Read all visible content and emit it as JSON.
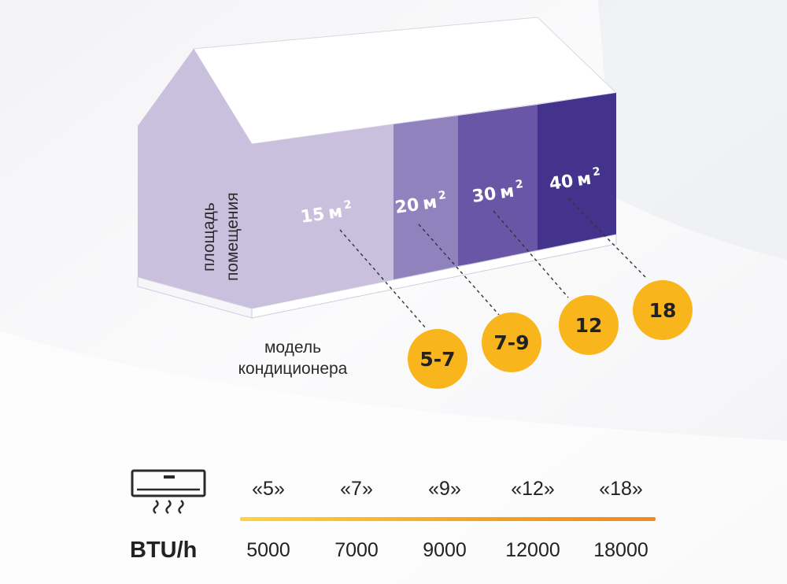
{
  "diagram": {
    "side_label_lines": [
      "площадь",
      "помещения"
    ],
    "areas": [
      {
        "value": "15",
        "unit": "м",
        "exp": "2",
        "color": "#c8c0dc"
      },
      {
        "value": "20",
        "unit": "м",
        "exp": "2",
        "color": "#8f82bd"
      },
      {
        "value": "30",
        "unit": "м",
        "exp": "2",
        "color": "#6a56a6"
      },
      {
        "value": "40",
        "unit": "м",
        "exp": "2",
        "color": "#43338c"
      }
    ],
    "models": [
      "5-7",
      "7-9",
      "12",
      "18"
    ],
    "badge_color": "#f8b61c",
    "caption_lines": [
      "модель",
      "кондиционера"
    ]
  },
  "scale": {
    "icon": "air-conditioner-icon",
    "model_labels": [
      "«5»",
      "«7»",
      "«9»",
      "«12»",
      "«18»"
    ],
    "unit_label": "BTU/h",
    "btu_values": [
      "5000",
      "7000",
      "9000",
      "12000",
      "18000"
    ]
  }
}
